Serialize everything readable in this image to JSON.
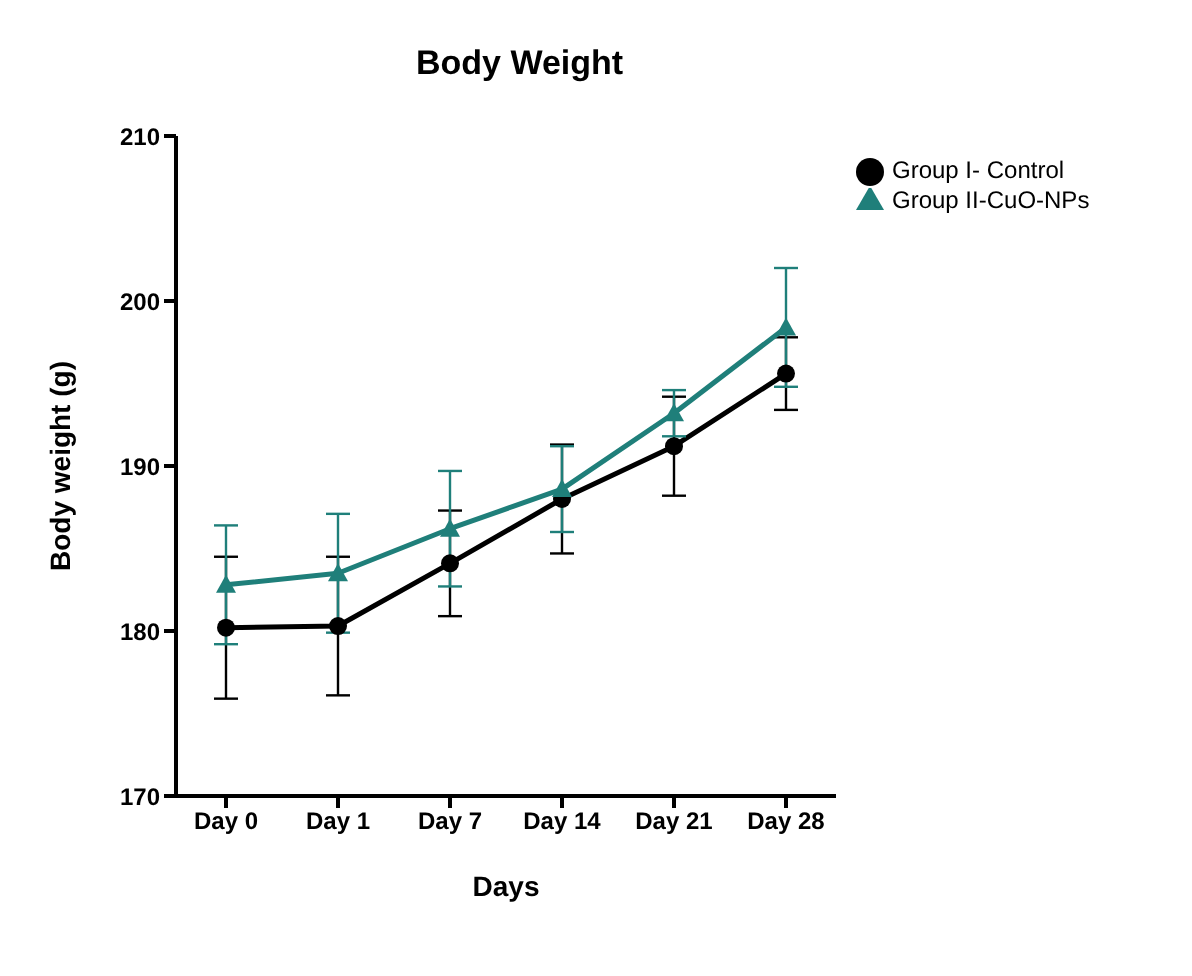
{
  "chart_data": {
    "type": "line",
    "title": "Body Weight",
    "xlabel": "Days",
    "ylabel": "Body weight (g)",
    "categories": [
      "Day 0",
      "Day 1",
      "Day 7",
      "Day 14",
      "Day 21",
      "Day 28"
    ],
    "series": [
      {
        "name": "Group I- Control",
        "color": "#000000",
        "marker": "circle",
        "values": [
          180.2,
          180.3,
          184.1,
          188.0,
          191.2,
          195.6
        ],
        "errors": [
          4.3,
          4.2,
          3.2,
          3.3,
          3.0,
          2.2
        ]
      },
      {
        "name": "Group II-CuO-NPs",
        "color": "#1f7f7a",
        "marker": "triangle",
        "values": [
          182.8,
          183.5,
          186.2,
          188.6,
          193.2,
          198.4
        ],
        "errors": [
          3.6,
          3.6,
          3.5,
          2.6,
          1.4,
          3.6
        ]
      }
    ],
    "ylim": [
      170,
      210
    ],
    "yticks": [
      170,
      180,
      190,
      200,
      210
    ],
    "grid": false,
    "legend": "top right"
  }
}
